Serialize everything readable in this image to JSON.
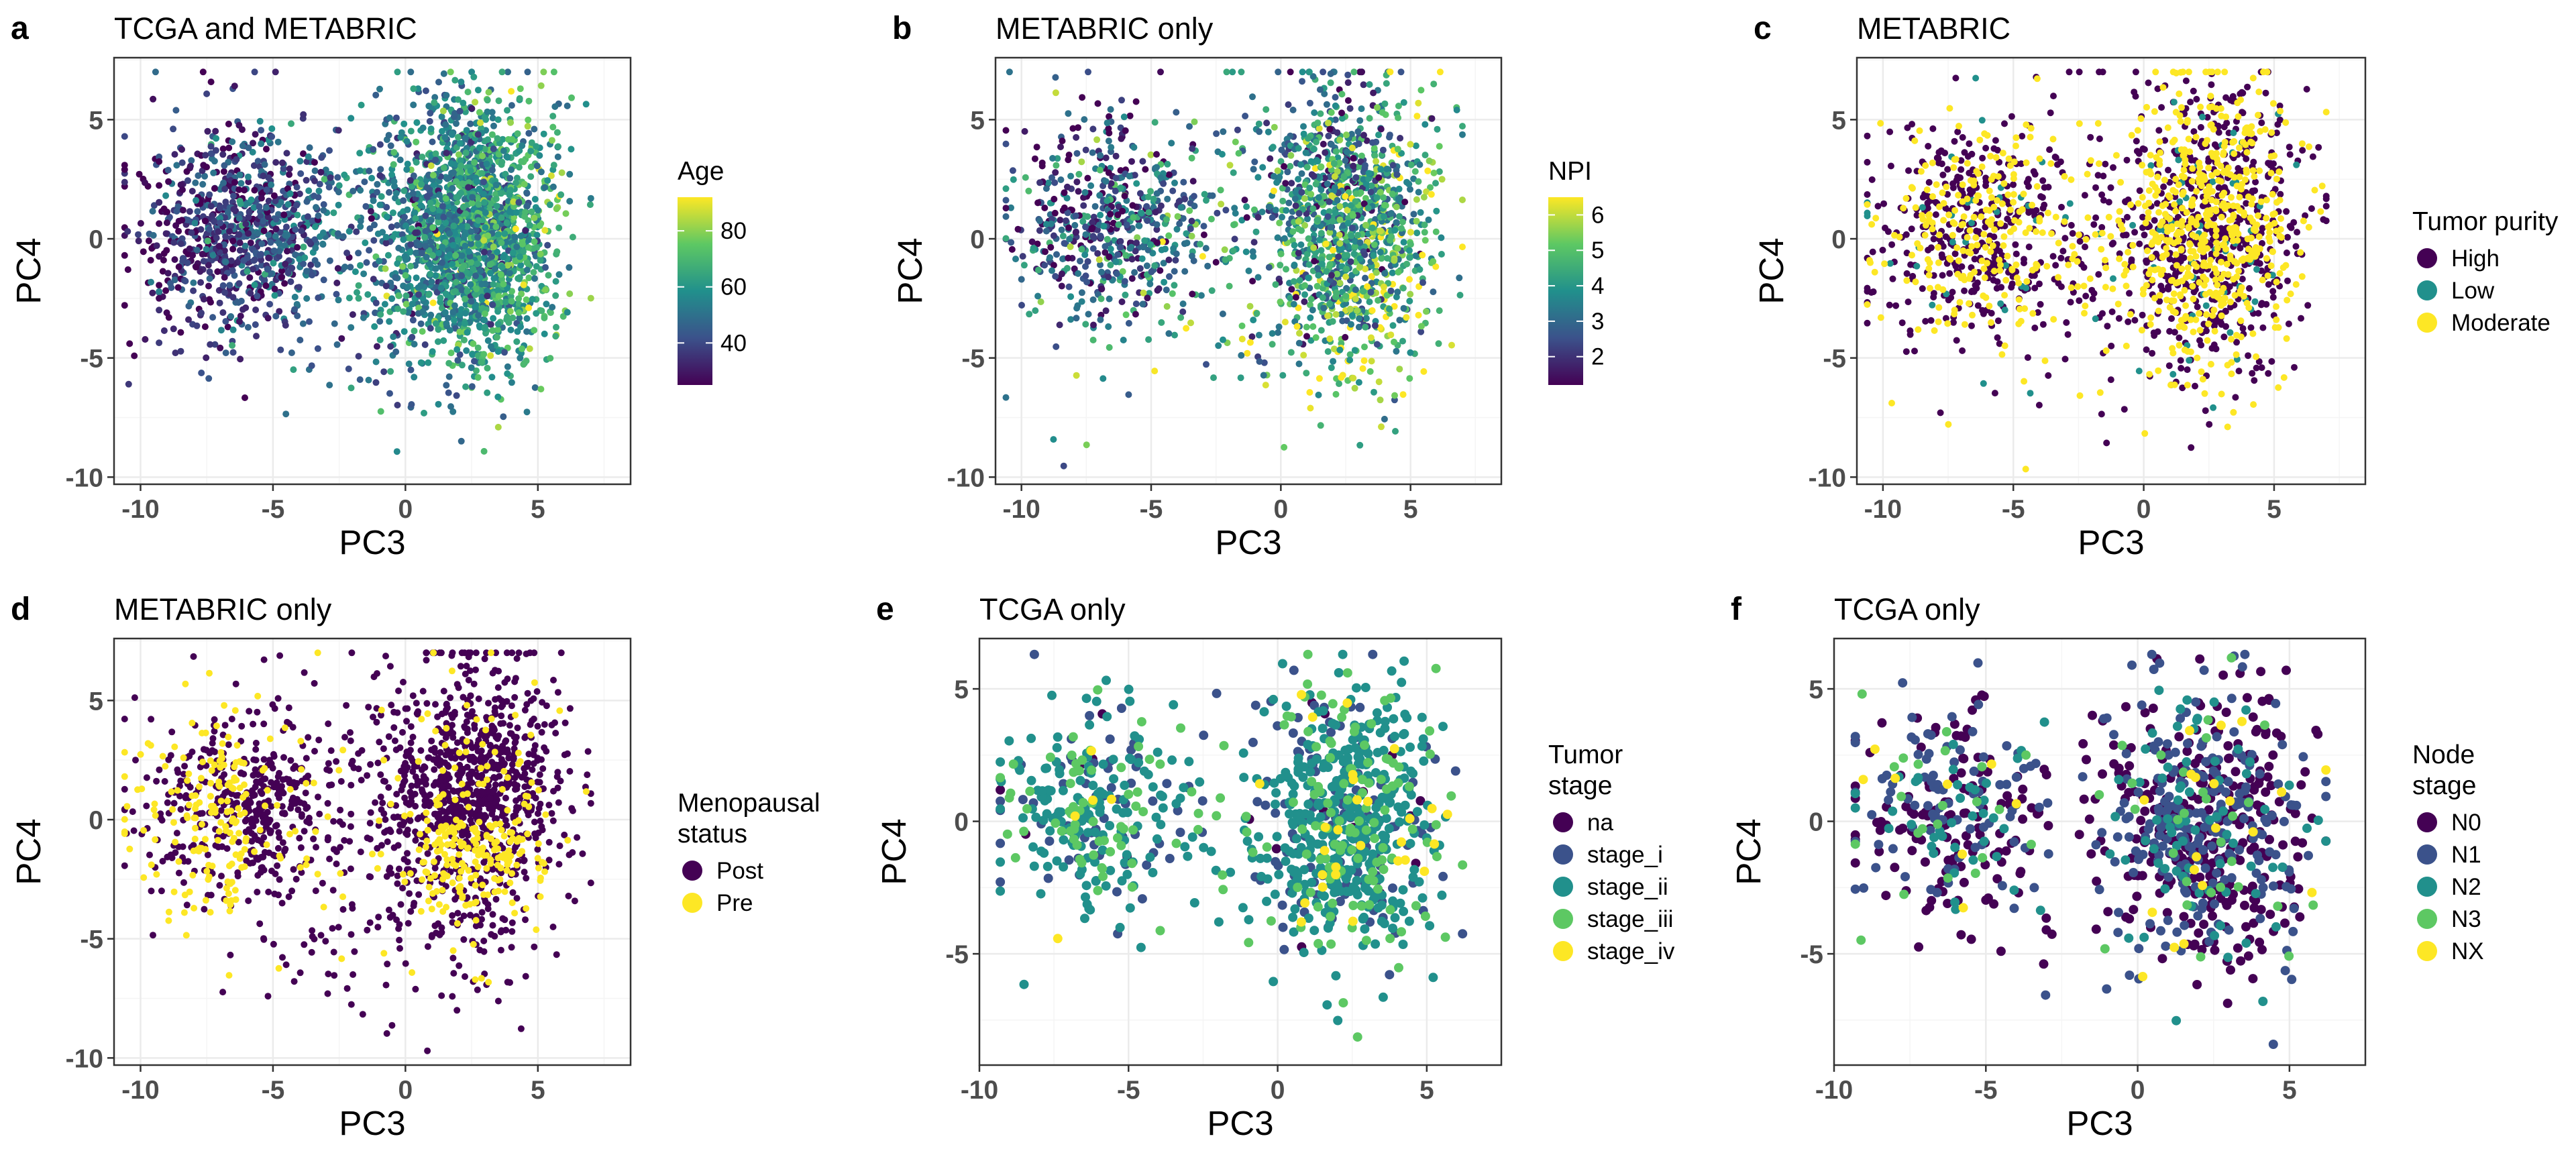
{
  "colors": {
    "viridis": [
      "#440154",
      "#3b528b",
      "#21908c",
      "#5dc863",
      "#fde725"
    ],
    "panel_border": "#333333",
    "grid_major": "#ebebeb",
    "grid_minor": "#f5f5f5",
    "tick_label": "#4d4d4d"
  },
  "chart_data": [
    {
      "id": "a",
      "letter": "a",
      "title": "TCGA and METABRIC",
      "type": "scatter",
      "xlabel": "PC3",
      "ylabel": "PC4",
      "xlim": [
        -11,
        8.5
      ],
      "ylim": [
        -10.3,
        7.6
      ],
      "xticks": [
        -10,
        -5,
        0,
        5
      ],
      "xtick_labels": [
        "-10",
        "-5",
        "0",
        "5"
      ],
      "yticks": [
        -10,
        -5,
        0,
        5
      ],
      "ytick_labels": [
        "-10",
        "-5",
        "0",
        "5"
      ],
      "grid": true,
      "legend": {
        "kind": "continuous",
        "title": [
          "Age"
        ],
        "min": 25,
        "max": 92,
        "ticks": [
          40,
          60,
          80
        ],
        "tick_labels": [
          "40",
          "60",
          "80"
        ],
        "placement": "right"
      },
      "points": {
        "approx_count": 3000,
        "color_by": "Age",
        "cloud": "two overlapping clusters: left cluster centred near (-6, 0), dense right cluster centred near (2.5, 0); x range about -10.5 to 7, y range about -9.5 to 7"
      }
    },
    {
      "id": "b",
      "letter": "b",
      "title": "METABRIC only",
      "type": "scatter",
      "xlabel": "PC3",
      "ylabel": "PC4",
      "xlim": [
        -11,
        8.5
      ],
      "ylim": [
        -10.3,
        7.6
      ],
      "xticks": [
        -10,
        -5,
        0,
        5
      ],
      "xtick_labels": [
        "-10",
        "-5",
        "0",
        "5"
      ],
      "yticks": [
        -10,
        -5,
        0,
        5
      ],
      "ytick_labels": [
        "-10",
        "-5",
        "0",
        "5"
      ],
      "grid": true,
      "legend": {
        "kind": "continuous",
        "title": [
          "NPI"
        ],
        "min": 1.2,
        "max": 6.5,
        "ticks": [
          2,
          3,
          4,
          5,
          6
        ],
        "tick_labels": [
          "2",
          "3",
          "4",
          "5",
          "6"
        ],
        "placement": "right"
      },
      "points": {
        "approx_count": 1900,
        "color_by": "NPI",
        "cloud": "wide cloud concentrated at x 0 to 5, sparser to the left; x range about -10.5 to 7, y range about -9.5 to 7"
      }
    },
    {
      "id": "c",
      "letter": "c",
      "title": "METABRIC",
      "type": "scatter",
      "xlabel": "PC3",
      "ylabel": "PC4",
      "xlim": [
        -11,
        8.5
      ],
      "ylim": [
        -10.3,
        7.6
      ],
      "xticks": [
        -10,
        -5,
        0,
        5
      ],
      "xtick_labels": [
        "-10",
        "-5",
        "0",
        "5"
      ],
      "yticks": [
        -10,
        -5,
        0,
        5
      ],
      "ytick_labels": [
        "-10",
        "-5",
        "0",
        "5"
      ],
      "grid": true,
      "legend": {
        "kind": "discrete",
        "title": [
          "Tumor purity"
        ],
        "placement": "right",
        "items": [
          {
            "label": "High",
            "color": "#440154"
          },
          {
            "label": "Low",
            "color": "#21908c"
          },
          {
            "label": "Moderate",
            "color": "#fde725"
          }
        ]
      },
      "points": {
        "approx_count": 1900,
        "color_by": "Tumor purity",
        "category_shares": [
          0.6,
          0.05,
          0.35
        ],
        "cloud": "same layout as panel b; High spread across the cloud, Moderate concentrated at x 0 to 5 and around x -5"
      }
    },
    {
      "id": "d",
      "letter": "d",
      "title": "METABRIC only",
      "type": "scatter",
      "xlabel": "PC3",
      "ylabel": "PC4",
      "xlim": [
        -11,
        8.5
      ],
      "ylim": [
        -10.3,
        7.6
      ],
      "xticks": [
        -10,
        -5,
        0,
        5
      ],
      "xtick_labels": [
        "-10",
        "-5",
        "0",
        "5"
      ],
      "yticks": [
        -10,
        -5,
        0,
        5
      ],
      "ytick_labels": [
        "-10",
        "-5",
        "0",
        "5"
      ],
      "grid": true,
      "legend": {
        "kind": "discrete",
        "title": [
          "Menopausal",
          "status"
        ],
        "placement": "right",
        "items": [
          {
            "label": "Post",
            "color": "#440154"
          },
          {
            "label": "Pre",
            "color": "#fde725"
          }
        ]
      },
      "points": {
        "approx_count": 1900,
        "color_by": "Menopausal status",
        "category_shares": [
          0.78,
          0.22
        ],
        "cloud": "same layout as panel b; Pre points mostly on the far left (x -10 to -6) and lower right (x 1 to 5, y -3 to 0)"
      }
    },
    {
      "id": "e",
      "letter": "e",
      "title": "TCGA only",
      "type": "scatter",
      "xlabel": "PC3",
      "ylabel": "PC4",
      "xlim": [
        -10,
        7.5
      ],
      "ylim": [
        -9.2,
        6.9
      ],
      "xticks": [
        -10,
        -5,
        0,
        5
      ],
      "xtick_labels": [
        "-10",
        "-5",
        "0",
        "5"
      ],
      "yticks": [
        -5,
        0,
        5
      ],
      "ytick_labels": [
        "-5",
        "0",
        "5"
      ],
      "grid": true,
      "legend": {
        "kind": "discrete",
        "title": [
          "Tumor",
          "stage"
        ],
        "placement": "right",
        "items": [
          {
            "label": "na",
            "color": "#440154"
          },
          {
            "label": "stage_i",
            "color": "#3b528b"
          },
          {
            "label": "stage_ii",
            "color": "#21908c"
          },
          {
            "label": "stage_iii",
            "color": "#5dc863"
          },
          {
            "label": "stage_iv",
            "color": "#fde725"
          }
        ]
      },
      "points": {
        "approx_count": 1000,
        "color_by": "Tumor stage",
        "category_shares": [
          0.02,
          0.2,
          0.55,
          0.2,
          0.03
        ],
        "cloud": "left cluster centred near (-6, 0), larger right cluster centred near (2.5, 0); y range about -8.5 to 6.2"
      }
    },
    {
      "id": "f",
      "letter": "f",
      "title": "TCGA only",
      "type": "scatter",
      "xlabel": "PC3",
      "ylabel": "PC4",
      "xlim": [
        -10,
        7.5
      ],
      "ylim": [
        -9.2,
        6.9
      ],
      "xticks": [
        -10,
        -5,
        0,
        5
      ],
      "xtick_labels": [
        "-10",
        "-5",
        "0",
        "5"
      ],
      "yticks": [
        -5,
        0,
        5
      ],
      "ytick_labels": [
        "-5",
        "0",
        "5"
      ],
      "grid": true,
      "legend": {
        "kind": "discrete",
        "title": [
          "Node",
          "stage"
        ],
        "placement": "right",
        "items": [
          {
            "label": "N0",
            "color": "#440154"
          },
          {
            "label": "N1",
            "color": "#3b528b"
          },
          {
            "label": "N2",
            "color": "#21908c"
          },
          {
            "label": "N3",
            "color": "#5dc863"
          },
          {
            "label": "NX",
            "color": "#fde725"
          }
        ]
      },
      "points": {
        "approx_count": 1000,
        "color_by": "Node stage",
        "category_shares": [
          0.52,
          0.3,
          0.1,
          0.05,
          0.03
        ],
        "cloud": "same layout as panel e"
      }
    }
  ]
}
